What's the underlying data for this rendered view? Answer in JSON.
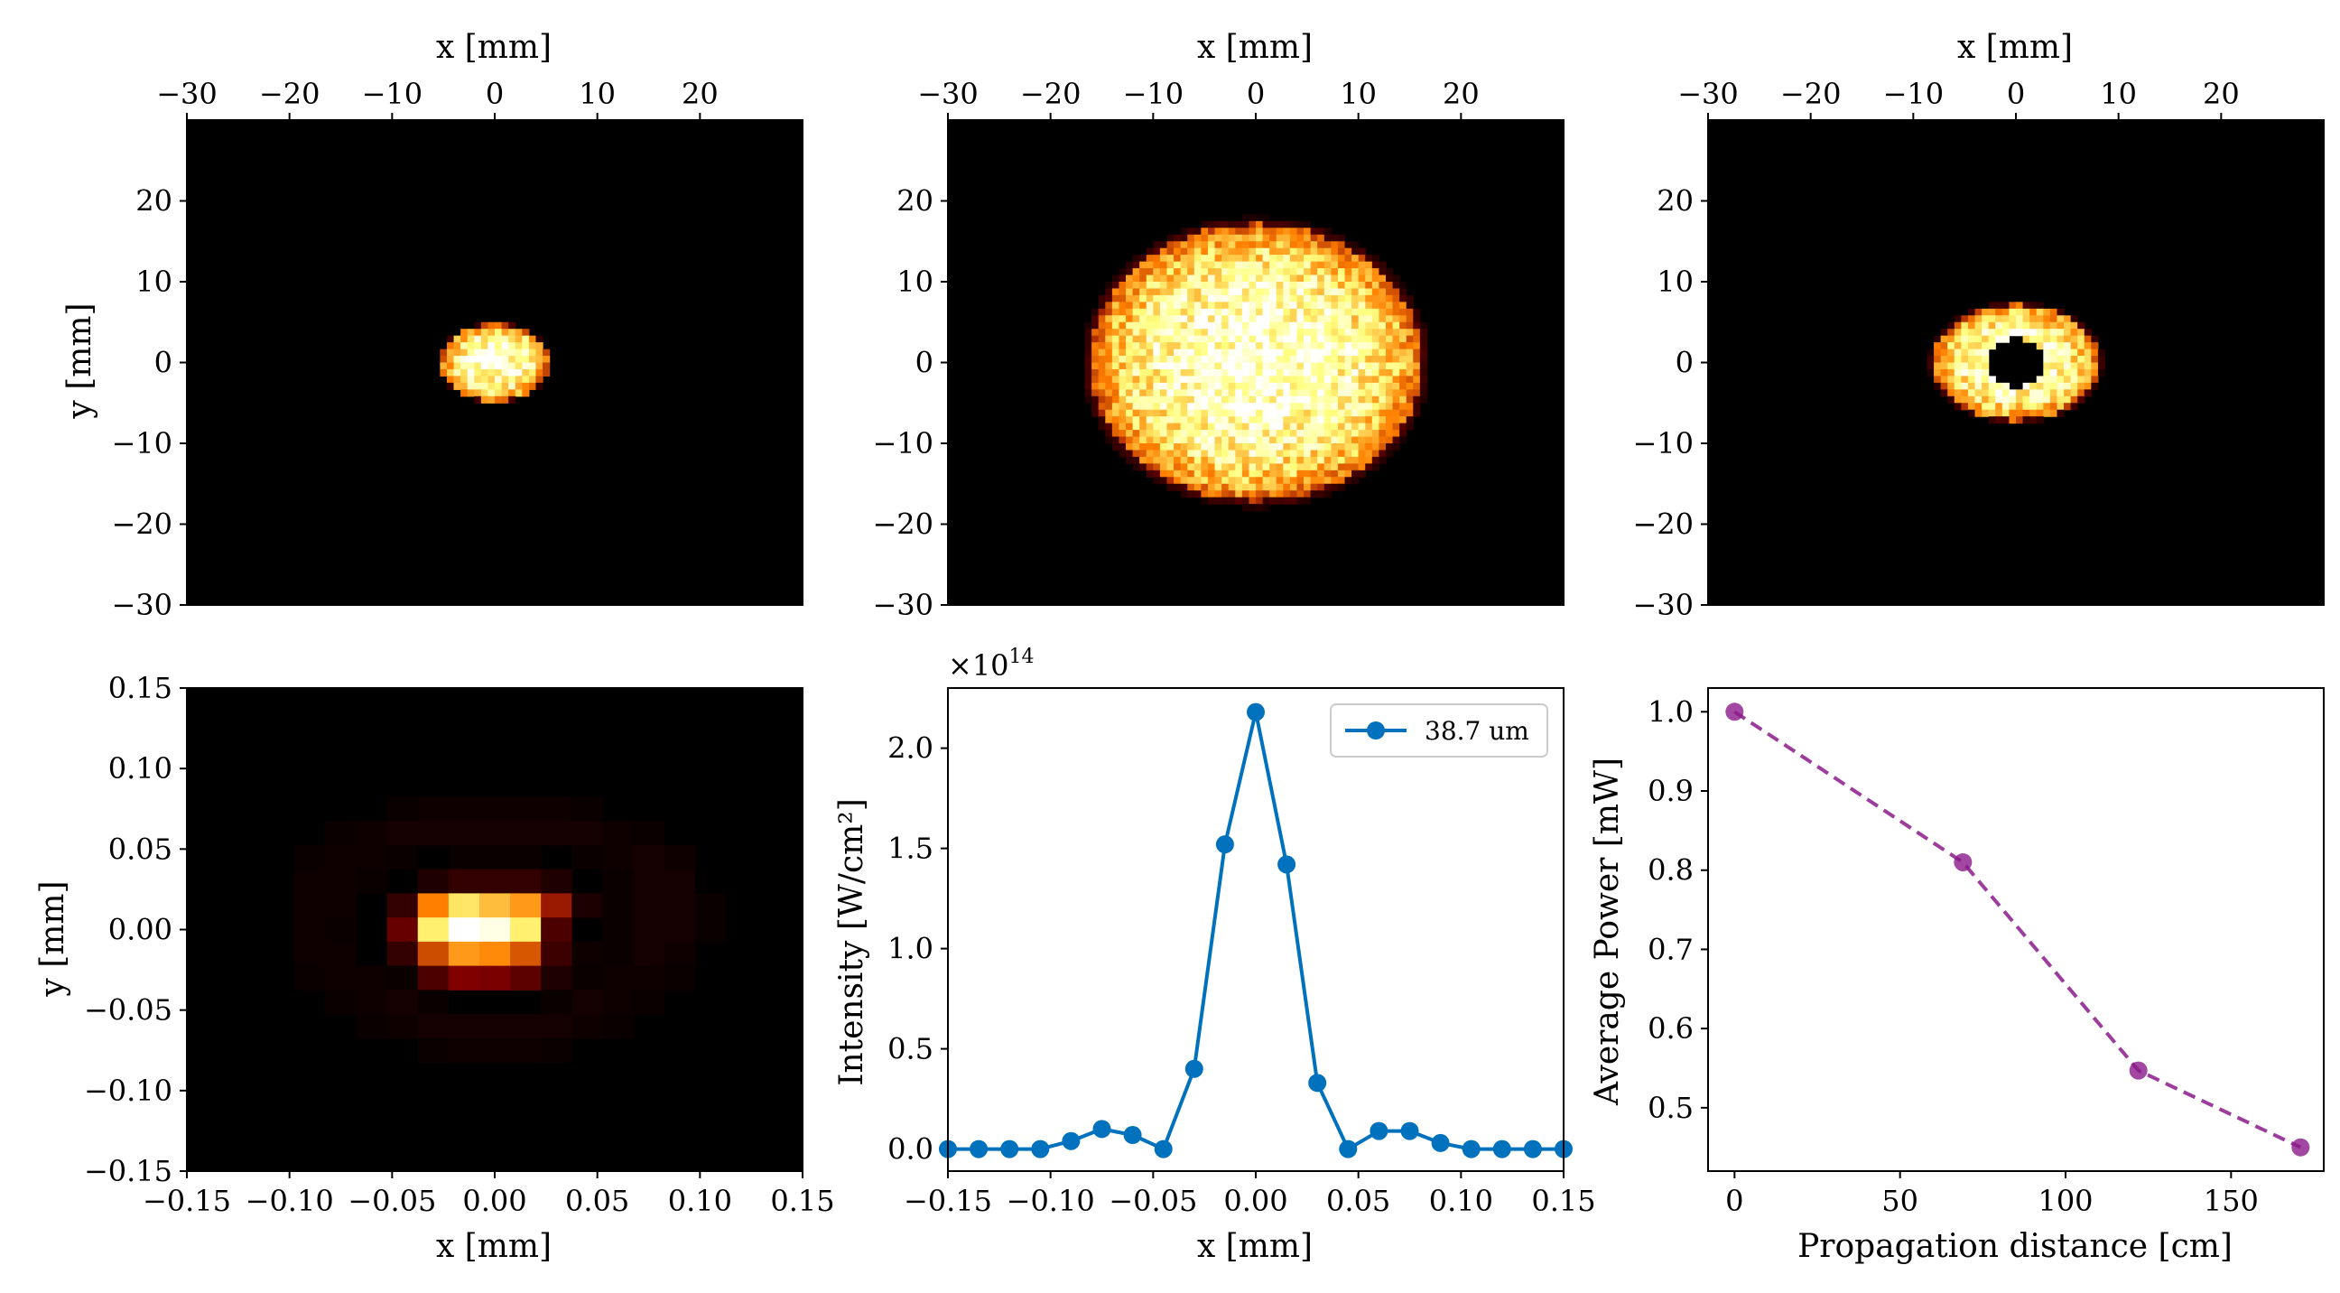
{
  "colors": {
    "background": "#ffffff",
    "image_background": "#000000",
    "intensity_line": "#0072bd",
    "power_line": "#8b1a8b",
    "axis": "#000000"
  },
  "chart_data": [
    {
      "type": "heatmap",
      "panel": "top-left",
      "title": "",
      "xlabel": "x [mm]",
      "ylabel": "y [mm]",
      "xlabel_position": "top",
      "xlim": [
        -30,
        30
      ],
      "ylim": [
        -30,
        30
      ],
      "xticks": [
        -30,
        -20,
        -10,
        0,
        10,
        20
      ],
      "yticks": [
        20,
        10,
        0,
        -10,
        -20,
        -30
      ],
      "colormap": "afmhot",
      "beam": {
        "center": [
          0,
          0
        ],
        "radius_x": 5.5,
        "radius_y": 5,
        "peak": 1.0,
        "shape": "spot"
      }
    },
    {
      "type": "heatmap",
      "panel": "top-center",
      "title": "",
      "xlabel": "x [mm]",
      "ylabel": "",
      "xlabel_position": "top",
      "xlim": [
        -30,
        30
      ],
      "ylim": [
        -30,
        30
      ],
      "xticks": [
        -30,
        -20,
        -10,
        0,
        10,
        20
      ],
      "yticks": [
        20,
        10,
        0,
        -10,
        -20,
        -30
      ],
      "colormap": "afmhot",
      "beam": {
        "center": [
          0,
          0
        ],
        "radius_x": 17,
        "radius_y": 18,
        "peak": 1.0,
        "shape": "spot"
      }
    },
    {
      "type": "heatmap",
      "panel": "top-right",
      "title": "",
      "xlabel": "x [mm]",
      "ylabel": "",
      "xlabel_position": "top",
      "xlim": [
        -30,
        30
      ],
      "ylim": [
        -30,
        30
      ],
      "xticks": [
        -30,
        -20,
        -10,
        0,
        10,
        20
      ],
      "yticks": [
        20,
        10,
        0,
        -10,
        -20,
        -30
      ],
      "colormap": "afmhot",
      "beam": {
        "center": [
          0,
          0
        ],
        "radius_x": 8.5,
        "radius_y": 7.5,
        "peak": 1.0,
        "shape": "ring",
        "hole_radius_x": 3,
        "hole_radius_y": 3
      }
    },
    {
      "type": "heatmap",
      "panel": "bottom-left",
      "title": "",
      "xlabel": "x [mm]",
      "ylabel": "y [mm]",
      "xlim": [
        -0.15,
        0.15
      ],
      "ylim": [
        -0.15,
        0.15
      ],
      "xticks": [
        "−0.15",
        "−0.10",
        "−0.05",
        "0.00",
        "0.05",
        "0.10",
        "0.15"
      ],
      "yticks": [
        "0.15",
        "0.10",
        "0.05",
        "0.00",
        "−0.05",
        "−0.10",
        "−0.15"
      ],
      "colormap": "afmhot",
      "grid_x": [
        -0.135,
        -0.12,
        -0.105,
        -0.09,
        -0.075,
        -0.06,
        -0.045,
        -0.03,
        -0.015,
        0,
        0.015,
        0.03,
        0.045,
        0.06,
        0.075,
        0.09,
        0.105,
        0.12,
        0.135
      ],
      "grid_y": [
        0.09,
        0.075,
        0.06,
        0.045,
        0.03,
        0.015,
        0,
        -0.015,
        -0.03,
        -0.045,
        -0.06,
        -0.075,
        -0.09
      ],
      "values": [
        [
          0,
          0,
          0,
          0,
          0,
          0,
          0,
          0,
          0,
          0,
          0,
          0,
          0,
          0,
          0,
          0,
          0,
          0,
          0
        ],
        [
          0,
          0,
          0,
          0,
          0,
          0,
          0.02,
          0.03,
          0.03,
          0.03,
          0.03,
          0.03,
          0.02,
          0,
          0,
          0,
          0,
          0,
          0
        ],
        [
          0,
          0,
          0,
          0,
          0.02,
          0.03,
          0.04,
          0.04,
          0.04,
          0.04,
          0.04,
          0.04,
          0.04,
          0.03,
          0.02,
          0,
          0,
          0,
          0
        ],
        [
          0,
          0,
          0,
          0.02,
          0.03,
          0.03,
          0.02,
          0,
          0.02,
          0.02,
          0.02,
          0,
          0.02,
          0.03,
          0.04,
          0.03,
          0,
          0,
          0
        ],
        [
          0,
          0,
          0,
          0.03,
          0.03,
          0.02,
          0,
          0.06,
          0.1,
          0.1,
          0.1,
          0.06,
          0,
          0.02,
          0.04,
          0.04,
          0,
          0,
          0
        ],
        [
          0,
          0,
          0,
          0.03,
          0.03,
          0,
          0.1,
          0.5,
          0.7,
          0.62,
          0.55,
          0.3,
          0.05,
          0.02,
          0.04,
          0.04,
          0.02,
          0,
          0
        ],
        [
          0,
          0,
          0,
          0.03,
          0.02,
          0,
          0.2,
          0.72,
          1.0,
          0.95,
          0.72,
          0.15,
          0,
          0.02,
          0.04,
          0.04,
          0.02,
          0,
          0
        ],
        [
          0,
          0,
          0,
          0.03,
          0.03,
          0,
          0.1,
          0.4,
          0.55,
          0.52,
          0.42,
          0.12,
          0.03,
          0.02,
          0.04,
          0.03,
          0,
          0,
          0
        ],
        [
          0,
          0,
          0,
          0.02,
          0.03,
          0.03,
          0.02,
          0.15,
          0.25,
          0.24,
          0.18,
          0.06,
          0.02,
          0.03,
          0.03,
          0.02,
          0,
          0,
          0
        ],
        [
          0,
          0,
          0,
          0,
          0.02,
          0.03,
          0.04,
          0.02,
          0,
          0,
          0,
          0.02,
          0.04,
          0.03,
          0.02,
          0,
          0,
          0,
          0
        ],
        [
          0,
          0,
          0,
          0,
          0,
          0.02,
          0.03,
          0.04,
          0.04,
          0.04,
          0.04,
          0.04,
          0.03,
          0.02,
          0,
          0,
          0,
          0,
          0
        ],
        [
          0,
          0,
          0,
          0,
          0,
          0,
          0,
          0.02,
          0.03,
          0.03,
          0.03,
          0.02,
          0,
          0,
          0,
          0,
          0,
          0,
          0
        ],
        [
          0,
          0,
          0,
          0,
          0,
          0,
          0,
          0,
          0,
          0,
          0,
          0,
          0,
          0,
          0,
          0,
          0,
          0,
          0
        ]
      ]
    },
    {
      "type": "line",
      "panel": "bottom-center",
      "title": "",
      "xlabel": "x [mm]",
      "ylabel": "Intensity [W/cm²]",
      "offset_text": "×10",
      "offset_exponent": "14",
      "xlim": [
        -0.15,
        0.15
      ],
      "ylim": [
        -0.11,
        2.3
      ],
      "xticks": [
        "−0.15",
        "−0.10",
        "−0.05",
        "0.00",
        "0.05",
        "0.10",
        "0.15"
      ],
      "yticks": [
        "0.0",
        "0.5",
        "1.0",
        "1.5",
        "2.0"
      ],
      "legend_location": "top-right",
      "series": [
        {
          "name": "38.7 um",
          "x": [
            -0.15,
            -0.135,
            -0.12,
            -0.105,
            -0.09,
            -0.075,
            -0.06,
            -0.045,
            -0.03,
            -0.015,
            0.0,
            0.015,
            0.03,
            0.045,
            0.06,
            0.075,
            0.09,
            0.105,
            0.12,
            0.135,
            0.15
          ],
          "values": [
            0.0,
            0.0,
            0.0,
            0.0,
            0.04,
            0.1,
            0.07,
            0.0,
            0.4,
            1.52,
            2.18,
            1.42,
            0.33,
            0.0,
            0.09,
            0.09,
            0.03,
            0.0,
            0.0,
            0.0,
            0.0
          ]
        }
      ]
    },
    {
      "type": "line",
      "panel": "bottom-right",
      "title": "",
      "xlabel": "Propagation distance [cm]",
      "ylabel": "Average Power [mW]",
      "xlim": [
        -8,
        178
      ],
      "ylim": [
        0.42,
        1.03
      ],
      "xticks": [
        "0",
        "50",
        "100",
        "150"
      ],
      "yticks": [
        "0.5",
        "0.6",
        "0.7",
        "0.8",
        "0.9",
        "1.0"
      ],
      "line_style": "dashed",
      "series": [
        {
          "name": "Average Power",
          "x": [
            0,
            69,
            122,
            171
          ],
          "values": [
            1.0,
            0.81,
            0.547,
            0.45
          ]
        }
      ]
    }
  ]
}
